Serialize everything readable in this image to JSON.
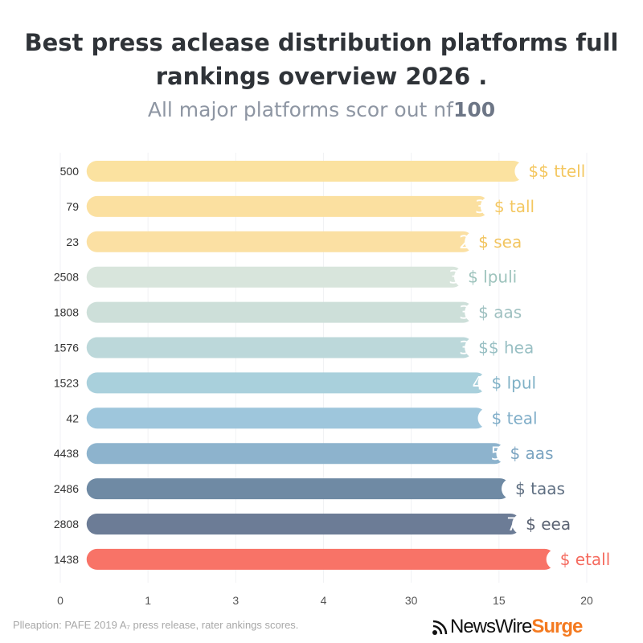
{
  "chart_data": {
    "type": "bar",
    "orientation": "horizontal",
    "title": "Best press aclease distribution platforms full rankings overview 2026 .",
    "subtitle_prefix": "All major platforms scor out nf",
    "subtitle_strong": "100",
    "categories": [
      "500",
      "79",
      "23",
      "2508",
      "1808",
      "1576",
      "1523",
      "42",
      "4438",
      "2486",
      "2808",
      "1438"
    ],
    "values": [
      17.6,
      16.3,
      15.7,
      15.3,
      15.7,
      15.7,
      16.2,
      16.2,
      16.9,
      17.1,
      17.5,
      18.8
    ],
    "bar_start": 1.0,
    "inner_labels": [
      "",
      "3",
      "2",
      "3",
      "3",
      "3",
      "4",
      "",
      "5",
      "",
      "7",
      ""
    ],
    "end_labels": [
      "$$ ttell",
      "$ tall",
      "$ sea",
      "$ lpuli",
      "$ aas",
      "$$ hea",
      "$ lpul",
      "$ teal",
      "$ aas",
      "$ taas",
      "$ eea",
      "$ etall"
    ],
    "colors": [
      "#fbe2a0",
      "#fbe0a0",
      "#fbe0a3",
      "#d8e5dc",
      "#cddfd9",
      "#bcd8da",
      "#a9d0dc",
      "#9ec6dc",
      "#8db3cd",
      "#6f8aa4",
      "#6c7c96",
      "#f87367"
    ],
    "label_colors": [
      "#f4c760",
      "#f4c760",
      "#f2c560",
      "#9dc3bc",
      "#9ec0c0",
      "#99c0c4",
      "#80b1c6",
      "#7fadc8",
      "#7ba4c1",
      "#5f6f82",
      "#5a6272",
      "#f56b5f"
    ],
    "x_ticks": [
      "0",
      "1",
      "3",
      "4",
      "30",
      "15",
      "20"
    ],
    "xlim": [
      0,
      20
    ],
    "grid": "vertical",
    "caption": "Plleaption: PAFE 2019 A₇ press release, rater ankings scores."
  },
  "logo": {
    "part1": "NewsWire",
    "part2": "Surge"
  }
}
